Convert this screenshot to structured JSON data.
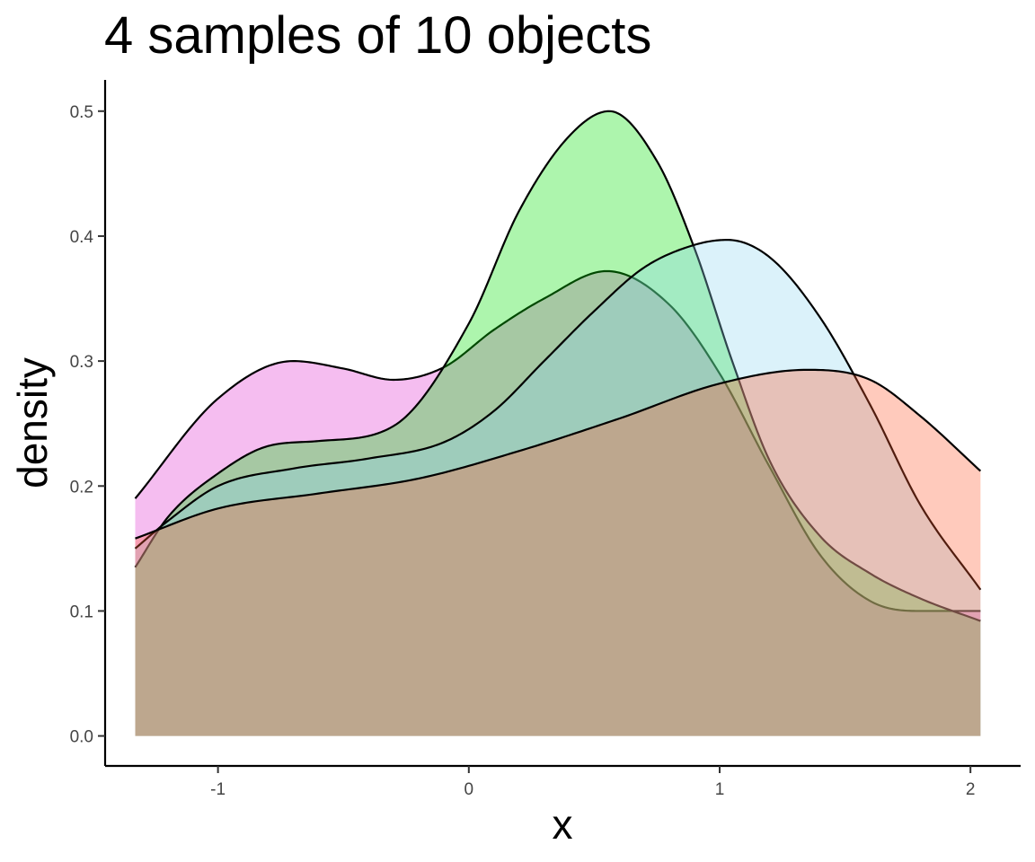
{
  "chart_data": {
    "type": "area",
    "title": "4 samples of 10 objects",
    "xlabel": "x",
    "ylabel": "density",
    "xlim": [
      -1.45,
      2.2
    ],
    "ylim": [
      -0.024,
      0.525
    ],
    "x_ticks": [
      "-1",
      "0",
      "1",
      "2"
    ],
    "x_tick_values": [
      -1,
      0,
      1,
      2
    ],
    "y_ticks": [
      "0.0",
      "0.1",
      "0.2",
      "0.3",
      "0.4",
      "0.5"
    ],
    "y_tick_values": [
      0,
      0.1,
      0.2,
      0.3,
      0.4,
      0.5
    ],
    "grid": false,
    "legend": "none",
    "series": [
      {
        "color": "#E033D0",
        "x": [
          -1.33,
          -1.0,
          -0.7,
          -0.5,
          -0.3,
          -0.1,
          0.1,
          0.3,
          0.55,
          0.8,
          1.0,
          1.2,
          1.4,
          1.6,
          1.8,
          2.04
        ],
        "values": [
          0.19,
          0.27,
          0.3,
          0.294,
          0.285,
          0.295,
          0.325,
          0.35,
          0.372,
          0.345,
          0.29,
          0.215,
          0.145,
          0.108,
          0.1,
          0.1
        ]
      },
      {
        "color": "#00E000",
        "x": [
          -1.33,
          -1.2,
          -1.0,
          -0.8,
          -0.6,
          -0.3,
          0.0,
          0.2,
          0.4,
          0.56,
          0.75,
          0.9,
          1.05,
          1.2,
          1.4,
          1.6,
          1.8,
          2.04
        ],
        "values": [
          0.135,
          0.175,
          0.21,
          0.232,
          0.236,
          0.248,
          0.33,
          0.42,
          0.48,
          0.5,
          0.46,
          0.39,
          0.3,
          0.22,
          0.16,
          0.13,
          0.11,
          0.092
        ]
      },
      {
        "color": "#8ED7F0",
        "x": [
          -1.33,
          -1.2,
          -1.0,
          -0.7,
          -0.4,
          -0.1,
          0.1,
          0.3,
          0.5,
          0.7,
          0.9,
          1.03,
          1.2,
          1.4,
          1.6,
          1.8,
          2.04
        ],
        "values": [
          0.15,
          0.172,
          0.2,
          0.214,
          0.222,
          0.235,
          0.26,
          0.3,
          0.34,
          0.375,
          0.393,
          0.397,
          0.383,
          0.335,
          0.265,
          0.185,
          0.117
        ]
      },
      {
        "color": "#FF5A30",
        "x": [
          -1.33,
          -1.0,
          -0.6,
          -0.2,
          0.2,
          0.6,
          1.0,
          1.35,
          1.6,
          1.8,
          2.04
        ],
        "values": [
          0.158,
          0.182,
          0.194,
          0.206,
          0.228,
          0.254,
          0.282,
          0.293,
          0.285,
          0.256,
          0.212
        ]
      }
    ]
  }
}
